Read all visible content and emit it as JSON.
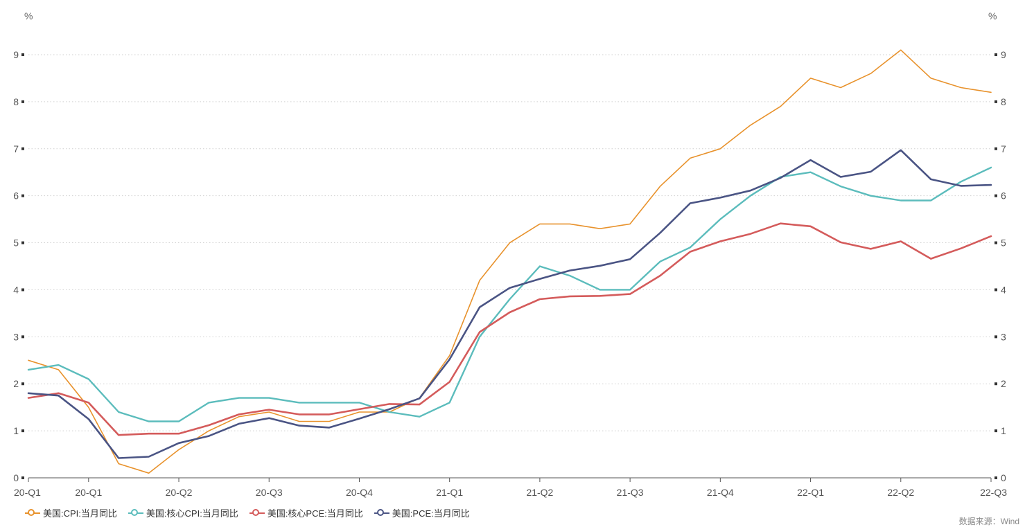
{
  "chart_data": {
    "type": "line",
    "title": "",
    "y_unit_left": "%",
    "y_unit_right": "%",
    "ylim": [
      0,
      9
    ],
    "y_ticks": [
      0,
      1,
      2,
      3,
      4,
      5,
      6,
      7,
      8,
      9
    ],
    "grid": "horizontal dotted",
    "legend_position": "bottom-left",
    "x_tick_labels": [
      "20-Q1",
      "20-Q1",
      "20-Q2",
      "20-Q3",
      "20-Q4",
      "21-Q1",
      "21-Q2",
      "21-Q3",
      "21-Q4",
      "22-Q1",
      "22-Q2",
      "22-Q3"
    ],
    "x_tick_indices": [
      0,
      2,
      5,
      8,
      11,
      14,
      17,
      20,
      23,
      26,
      29,
      32
    ],
    "x_count": 33,
    "series": [
      {
        "name": "美国:CPI:当月同比",
        "color": "#e8922c",
        "stroke_width": 1.6,
        "values": [
          2.5,
          2.3,
          1.5,
          0.3,
          0.1,
          0.6,
          1.0,
          1.3,
          1.4,
          1.2,
          1.2,
          1.4,
          1.4,
          1.7,
          2.6,
          4.2,
          5.0,
          5.4,
          5.4,
          5.3,
          5.4,
          6.2,
          6.8,
          7.0,
          7.5,
          7.9,
          8.5,
          8.3,
          8.6,
          9.1,
          8.5,
          8.3,
          8.2
        ]
      },
      {
        "name": "美国:核心CPI:当月同比",
        "color": "#5bbcbc",
        "stroke_width": 2.4,
        "values": [
          2.3,
          2.4,
          2.1,
          1.4,
          1.2,
          1.2,
          1.6,
          1.7,
          1.7,
          1.6,
          1.6,
          1.6,
          1.4,
          1.3,
          1.6,
          3.0,
          3.8,
          4.5,
          4.3,
          4.0,
          4.0,
          4.6,
          4.9,
          5.5,
          6.0,
          6.4,
          6.5,
          6.2,
          6.0,
          5.9,
          5.9,
          6.3,
          6.6
        ]
      },
      {
        "name": "美国:核心PCE:当月同比",
        "color": "#d45b5b",
        "stroke_width": 2.6,
        "values": [
          1.7,
          1.8,
          1.6,
          0.91,
          0.94,
          0.94,
          1.12,
          1.35,
          1.45,
          1.35,
          1.35,
          1.46,
          1.57,
          1.56,
          2.04,
          3.1,
          3.52,
          3.8,
          3.86,
          3.87,
          3.91,
          4.3,
          4.81,
          5.03,
          5.19,
          5.41,
          5.35,
          5.01,
          4.87,
          5.03,
          4.66,
          4.88,
          5.14
        ]
      },
      {
        "name": "美国:PCE:当月同比",
        "color": "#4a5484",
        "stroke_width": 2.6,
        "values": [
          1.8,
          1.75,
          1.25,
          0.42,
          0.45,
          0.74,
          0.89,
          1.15,
          1.27,
          1.11,
          1.07,
          1.26,
          1.46,
          1.69,
          2.52,
          3.63,
          4.04,
          4.23,
          4.41,
          4.51,
          4.65,
          5.21,
          5.84,
          5.96,
          6.11,
          6.38,
          6.76,
          6.4,
          6.51,
          6.97,
          6.35,
          6.21,
          6.23
        ]
      }
    ]
  },
  "source": "数据来源：Wind"
}
